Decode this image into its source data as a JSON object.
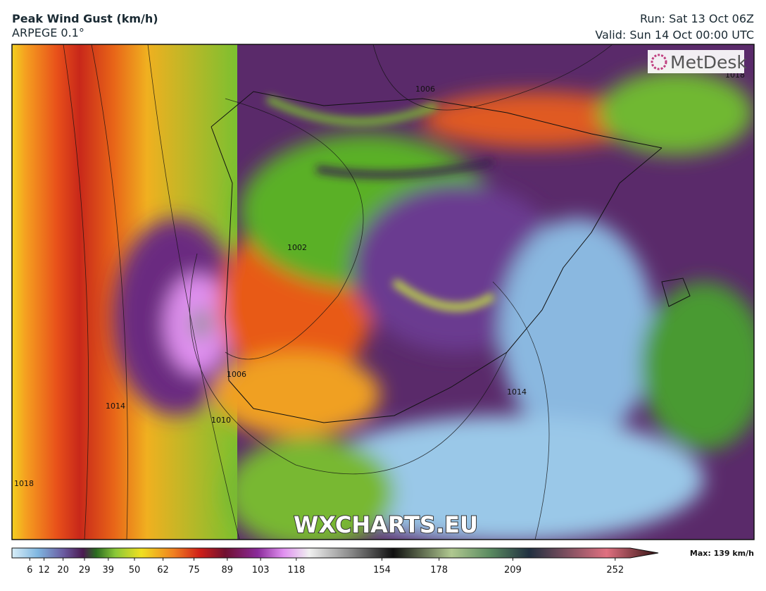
{
  "header": {
    "title": "Peak Wind Gust (km/h)",
    "subtitle": "ARPEGE 0.1°",
    "run": "Run: Sat 13 Oct 06Z",
    "valid": "Valid: Sun 14 Oct 00:00 UTC"
  },
  "map": {
    "logo": "MetDesk",
    "watermark": "WXCHARTS.EU",
    "isobar_labels": [
      "1006",
      "1002",
      "1006",
      "1014",
      "1010",
      "1018",
      "1014",
      "1018"
    ]
  },
  "colorbar": {
    "ticks": [
      6,
      12,
      20,
      29,
      39,
      50,
      62,
      75,
      89,
      103,
      118,
      154,
      178,
      209,
      252
    ],
    "max_label": "Max: 139 km/h"
  }
}
